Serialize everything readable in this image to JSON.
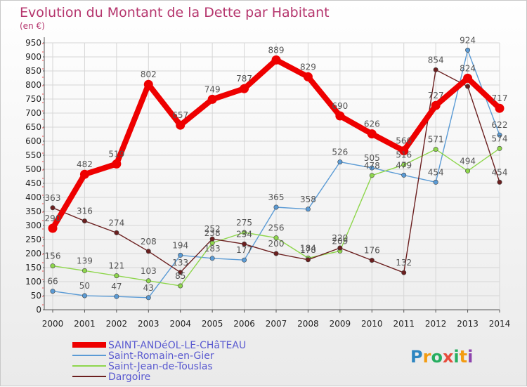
{
  "chart_data": {
    "type": "line",
    "title": "Evolution du Montant de la Dette par Habitant",
    "unit": "(en €)",
    "x": [
      "2000",
      "2001",
      "2002",
      "2003",
      "2004",
      "2005",
      "2006",
      "2007",
      "2008",
      "2009",
      "2010",
      "2011",
      "2012",
      "2013",
      "2014"
    ],
    "ylim": [
      0,
      950
    ],
    "yticks": [
      0,
      50,
      100,
      150,
      200,
      250,
      300,
      350,
      400,
      450,
      500,
      550,
      600,
      650,
      700,
      750,
      800,
      850,
      900,
      950
    ],
    "grid": true,
    "legend_position": "bottom-left",
    "series": [
      {
        "name": "SAINT-ANDéOL-LE-CHâTEAU",
        "color": "#ee0000",
        "values": [
          290,
          482,
          519,
          802,
          657,
          749,
          787,
          889,
          829,
          690,
          626,
          566,
          727,
          824,
          717
        ],
        "labels": [
          "290",
          "482",
          "519",
          "802",
          "657",
          "749",
          "787",
          "889",
          "829",
          "690",
          "626",
          "566",
          "727",
          "824",
          "717"
        ]
      },
      {
        "name": "Saint-Romain-en-Gier",
        "color": "#5b9bd5",
        "values": [
          66,
          50,
          47,
          43,
          194,
          183,
          177,
          365,
          358,
          526,
          505,
          479,
          454,
          924,
          622
        ],
        "labels": [
          "66",
          "50",
          "47",
          "43",
          "194",
          "183",
          "177",
          "365",
          "358",
          "526",
          "505",
          "479",
          "454",
          "924",
          "622"
        ]
      },
      {
        "name": "Saint-Jean-de-Touslas",
        "color": "#8ed64c",
        "values": [
          156,
          139,
          121,
          103,
          85,
          238,
          275,
          256,
          184,
          209,
          478,
          516,
          571,
          494,
          574
        ],
        "labels": [
          "156",
          "139",
          "121",
          "103",
          "85",
          "238",
          "275",
          "256",
          "184",
          "209",
          "478",
          "516",
          "571",
          "494",
          "574"
        ]
      },
      {
        "name": "Dargoire",
        "color": "#6b1f1f",
        "values": [
          363,
          316,
          274,
          208,
          133,
          252,
          234,
          200,
          178,
          220,
          176,
          132,
          854,
          795,
          454
        ],
        "labels": [
          "363",
          "316",
          "274",
          "208",
          "133",
          "252",
          "234",
          "200",
          "178",
          "220",
          "176",
          "132",
          "854",
          "",
          "454"
        ]
      }
    ]
  },
  "logo": {
    "letters": [
      "P",
      "r",
      "o",
      "x",
      "i",
      "t",
      "i"
    ],
    "colors": [
      "#2e86c1",
      "#f39c12",
      "#27ae60",
      "#e74c3c",
      "#27ae60",
      "#f39c12",
      "#8e44ad"
    ]
  }
}
